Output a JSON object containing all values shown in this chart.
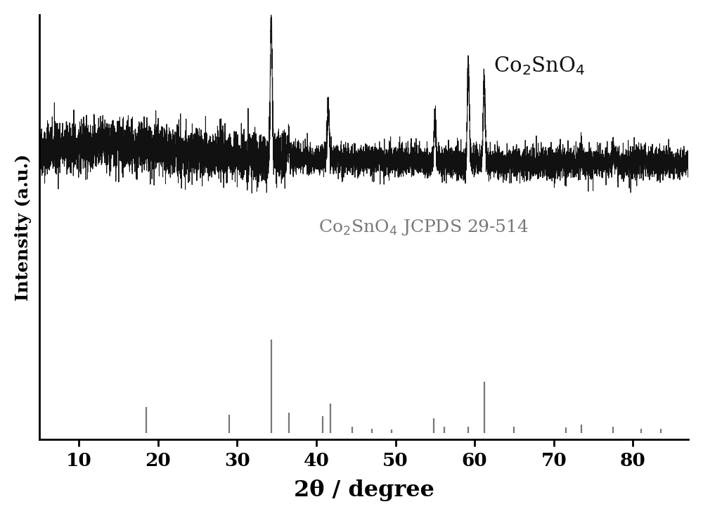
{
  "xmin": 5,
  "xmax": 87,
  "xlabel": "2θ / degree",
  "ylabel": "Intensity (a.u.)",
  "label_top_color": "#111111",
  "label_bottom_color": "#777777",
  "stick_color": "#777777",
  "line_color": "#111111",
  "background_color": "#ffffff",
  "xticks": [
    10,
    20,
    30,
    40,
    50,
    60,
    70,
    80
  ],
  "xrd_peak_positions": [
    34.3,
    36.5,
    41.5,
    55.0,
    59.2,
    61.2,
    73.5,
    77.5,
    81.5
  ],
  "xrd_peak_heights": [
    1.0,
    0.13,
    0.42,
    0.32,
    0.72,
    0.62,
    0.1,
    0.07,
    0.05
  ],
  "stick_positions": [
    18.5,
    29.0,
    34.3,
    36.5,
    40.8,
    41.8,
    44.5,
    47.0,
    49.5,
    54.8,
    56.2,
    59.2,
    61.2,
    65.0,
    71.5,
    73.5,
    77.5,
    81.0,
    83.5
  ],
  "stick_heights": [
    0.28,
    0.2,
    1.0,
    0.22,
    0.18,
    0.32,
    0.07,
    0.05,
    0.04,
    0.16,
    0.07,
    0.07,
    0.55,
    0.07,
    0.06,
    0.09,
    0.07,
    0.05,
    0.05
  ],
  "noise_seed": 42
}
